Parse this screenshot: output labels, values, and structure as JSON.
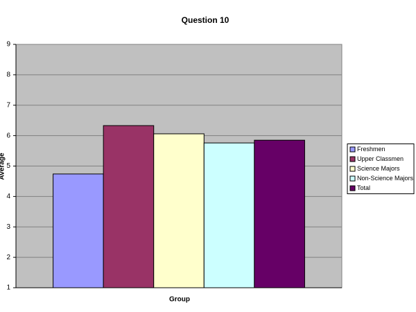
{
  "chart_data": {
    "type": "bar",
    "title": "Question 10",
    "x_label": "Group",
    "y_label": "Average",
    "series": [
      {
        "name": "Freshmen",
        "color": "#9999ff",
        "values": [
          4.74
        ]
      },
      {
        "name": "Upper Classmen",
        "color": "#993366",
        "values": [
          6.33
        ]
      },
      {
        "name": "Science Majors",
        "color": "#ffffcc",
        "values": [
          6.06
        ]
      },
      {
        "name": "Non-Science Majors",
        "color": "#ccffff",
        "values": [
          5.76
        ]
      },
      {
        "name": "Total",
        "color": "#660066",
        "values": [
          5.85
        ]
      }
    ],
    "ylim": [
      1,
      9
    ],
    "yticks": [
      1,
      2,
      3,
      4,
      5,
      6,
      7,
      8,
      9
    ],
    "grid": true,
    "legend": "right"
  }
}
